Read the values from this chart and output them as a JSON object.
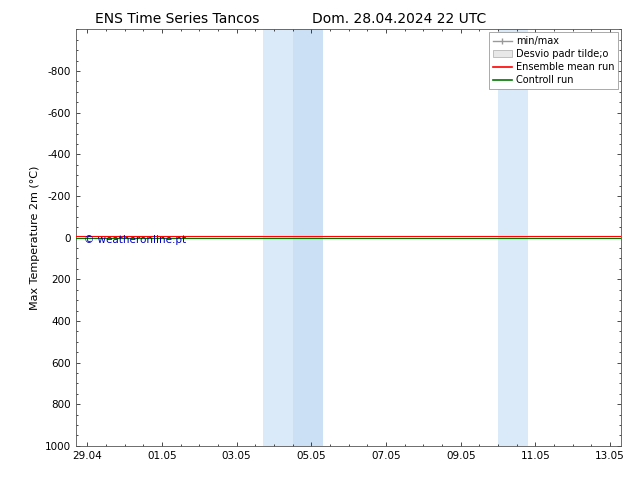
{
  "title_left": "ENS Time Series Tancos",
  "title_right": "Dom. 28.04.2024 22 UTC",
  "ylabel": "Max Temperature 2m (°C)",
  "ylim": [
    1000,
    -1000
  ],
  "yticks": [
    -800,
    -600,
    -400,
    -200,
    0,
    200,
    400,
    600,
    800,
    1000
  ],
  "xtick_labels": [
    "29.04",
    "01.05",
    "03.05",
    "05.05",
    "07.05",
    "09.05",
    "11.05",
    "13.05"
  ],
  "xtick_positions": [
    0,
    2,
    4,
    6,
    8,
    10,
    12,
    14
  ],
  "xlim": [
    -0.3,
    14.3
  ],
  "background_color": "#ffffff",
  "plot_bg_color": "#ffffff",
  "shaded_regions": [
    {
      "xmin": 4.7,
      "xmax": 5.5,
      "color": "#daeaf8"
    },
    {
      "xmin": 5.5,
      "xmax": 6.3,
      "color": "#cce0f5"
    },
    {
      "xmin": 11.0,
      "xmax": 11.8,
      "color": "#daeaf8"
    }
  ],
  "control_run_y": 0,
  "control_run_color": "#007700",
  "ensemble_mean_color": "#ff0000",
  "minmax_color": "#999999",
  "std_color": "#dddddd",
  "legend_entries": [
    "min/max",
    "Desvio padr tilde;o",
    "Ensemble mean run",
    "Controll run"
  ],
  "watermark": "© weatheronline.pt",
  "watermark_color": "#0000bb",
  "title_fontsize": 10,
  "label_fontsize": 8,
  "tick_fontsize": 7.5,
  "legend_fontsize": 7
}
